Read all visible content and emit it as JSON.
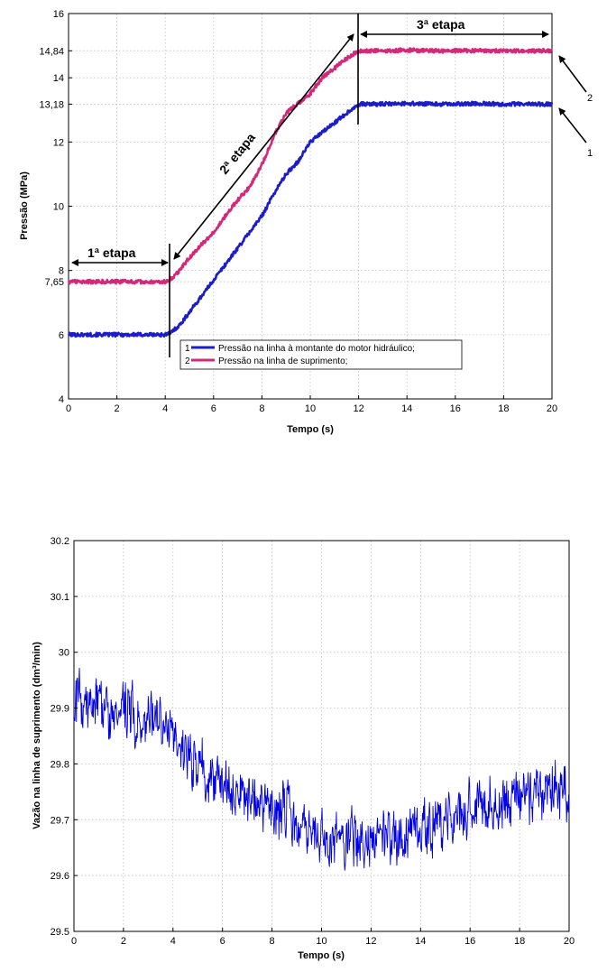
{
  "chart_data": [
    {
      "type": "line",
      "title": "",
      "xlabel": "Tempo (s)",
      "ylabel": "Pressão (MPa)",
      "xlim": [
        0,
        20
      ],
      "ylim": [
        4,
        16
      ],
      "grid": true,
      "legend_placement": "lower-center",
      "x_ticks": [
        "0",
        "2",
        "4",
        "6",
        "8",
        "10",
        "12",
        "14",
        "16",
        "18",
        "20"
      ],
      "y_ticks": [
        {
          "value": 4,
          "label": "4"
        },
        {
          "value": 6,
          "label": "6"
        },
        {
          "value": 7.65,
          "label": "7,65"
        },
        {
          "value": 8,
          "label": "8"
        },
        {
          "value": 10,
          "label": "10"
        },
        {
          "value": 12,
          "label": "12"
        },
        {
          "value": 13.18,
          "label": "13,18"
        },
        {
          "value": 14,
          "label": "14"
        },
        {
          "value": 14.84,
          "label": "14,84"
        },
        {
          "value": 16,
          "label": "16"
        }
      ],
      "series": [
        {
          "name": "Pressão na linha à montante do motor hidráulico;",
          "number": "1",
          "color": "#1c1cc8",
          "x": [
            0,
            1,
            2,
            3,
            4,
            4.2,
            4.6,
            5,
            5.5,
            6,
            6.5,
            7,
            7.5,
            8,
            8.5,
            9,
            9.5,
            10,
            10.5,
            11,
            11.5,
            12,
            13,
            14,
            15,
            16,
            17,
            18,
            19,
            20
          ],
          "y": [
            6.0,
            6.0,
            6.0,
            6.0,
            6.0,
            6.05,
            6.3,
            6.7,
            7.2,
            7.7,
            8.2,
            8.7,
            9.2,
            9.7,
            10.4,
            11.0,
            11.4,
            12.0,
            12.3,
            12.6,
            12.9,
            13.18,
            13.18,
            13.2,
            13.18,
            13.18,
            13.2,
            13.18,
            13.18,
            13.18
          ]
        },
        {
          "name": "Pressão na linha de suprimento;",
          "number": "2",
          "color": "#d4287a",
          "x": [
            0,
            1,
            2,
            3,
            4,
            4.2,
            4.6,
            5,
            5.5,
            6,
            6.5,
            7,
            7.5,
            8,
            8.5,
            9,
            9.5,
            10,
            10.5,
            11,
            11.5,
            12,
            13,
            14,
            15,
            16,
            17,
            18,
            19,
            20
          ],
          "y": [
            7.65,
            7.65,
            7.65,
            7.65,
            7.65,
            7.7,
            8.0,
            8.4,
            8.8,
            9.2,
            9.7,
            10.2,
            10.6,
            11.3,
            12.2,
            12.9,
            13.2,
            13.5,
            14.0,
            14.3,
            14.6,
            14.84,
            14.84,
            14.86,
            14.84,
            14.84,
            14.85,
            14.84,
            14.84,
            14.84
          ]
        }
      ],
      "annotations": [
        {
          "text": "1ª etapa",
          "x_from": 0,
          "x_to": 4.2
        },
        {
          "text": "2ª etapa",
          "x_from": 4.2,
          "x_to": 11.9
        },
        {
          "text": "3ª etapa",
          "x_from": 11.9,
          "x_to": 20
        }
      ],
      "pointer_labels": [
        "1",
        "2"
      ]
    },
    {
      "type": "line",
      "title": "",
      "xlabel": "Tempo (s)",
      "ylabel": "Vazão na linha de suprimento (dm³/min)",
      "xlim": [
        0,
        20
      ],
      "ylim": [
        29.5,
        30.2
      ],
      "grid": true,
      "x_ticks": [
        "0",
        "2",
        "4",
        "6",
        "8",
        "10",
        "12",
        "14",
        "16",
        "18",
        "20"
      ],
      "y_ticks": [
        {
          "value": 29.5,
          "label": "29.5"
        },
        {
          "value": 29.6,
          "label": "29.6"
        },
        {
          "value": 29.7,
          "label": "29.7"
        },
        {
          "value": 29.8,
          "label": "29.8"
        },
        {
          "value": 29.9,
          "label": "29.9"
        },
        {
          "value": 30,
          "label": "30"
        },
        {
          "value": 30.1,
          "label": "30.1"
        },
        {
          "value": 30.2,
          "label": "30.2"
        }
      ],
      "series": [
        {
          "color": "#0000e6",
          "x": [
            0,
            1,
            2,
            3,
            4,
            4.5,
            5,
            5.5,
            6,
            7,
            8,
            9,
            10,
            11,
            12,
            13,
            14,
            15,
            16,
            17,
            18,
            19,
            20
          ],
          "y": [
            29.92,
            29.9,
            29.9,
            29.88,
            29.86,
            29.82,
            29.8,
            29.78,
            29.77,
            29.74,
            29.72,
            29.69,
            29.67,
            29.66,
            29.66,
            29.67,
            29.68,
            29.7,
            29.72,
            29.73,
            29.74,
            29.75,
            29.76
          ],
          "noise_amplitude": 0.06
        }
      ]
    }
  ]
}
